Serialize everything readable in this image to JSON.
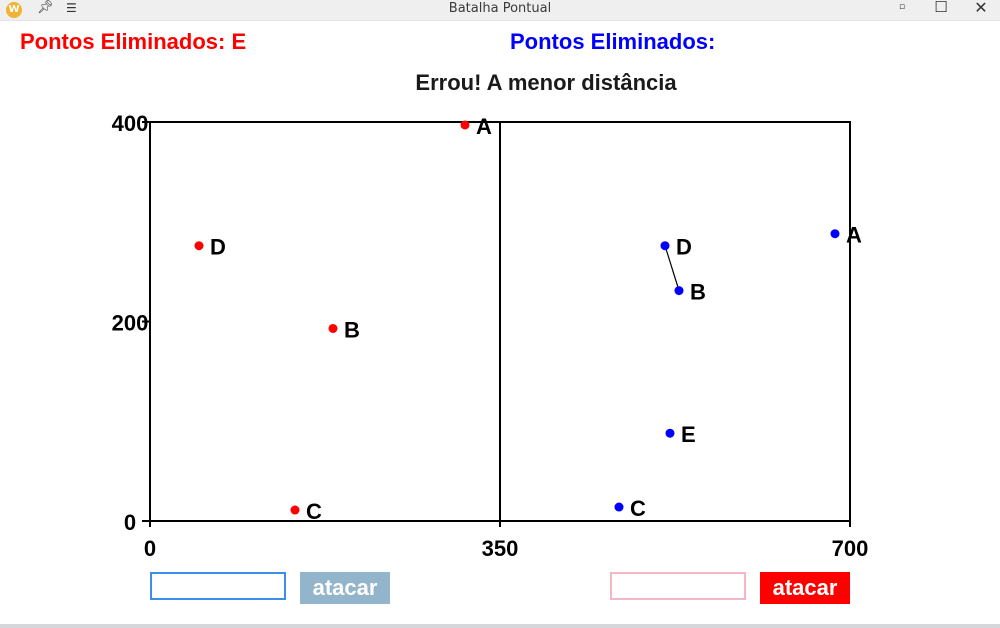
{
  "window": {
    "title": "Batalha Pontual",
    "app_icon_letter": "W",
    "pin_icon": "pin-icon",
    "menu_icon": "menu-icon",
    "minimize_glyph": "▫",
    "maximize_glyph": "☐",
    "close_glyph": "✕"
  },
  "scores": {
    "red": "Pontos Eliminados: E",
    "blue": "Pontos Eliminados:"
  },
  "message": "Errou! A menor distância",
  "controls": {
    "left_input_value": "",
    "left_attack_label": "atacar",
    "right_input_value": "",
    "right_attack_label": "atacar"
  },
  "colors": {
    "red": "#ff0000",
    "blue": "#0000ff"
  },
  "chart_data": {
    "type": "scatter",
    "xlim": [
      0,
      700
    ],
    "ylim": [
      0,
      400
    ],
    "x_ticks": [
      0,
      350,
      700
    ],
    "y_ticks": [
      0,
      200,
      400
    ],
    "x_tick_labels": [
      "0",
      "350",
      "700"
    ],
    "y_tick_labels": [
      "0",
      "200",
      "400"
    ],
    "divider_x": 350,
    "series": [
      {
        "color": "#ff0000",
        "points": [
          {
            "label": "A",
            "x": 315,
            "y": 397
          },
          {
            "label": "B",
            "x": 183,
            "y": 193
          },
          {
            "label": "C",
            "x": 145,
            "y": 11
          },
          {
            "label": "D",
            "x": 49,
            "y": 276
          }
        ]
      },
      {
        "color": "#0000ff",
        "points": [
          {
            "label": "A",
            "x": 685,
            "y": 288
          },
          {
            "label": "B",
            "x": 529,
            "y": 231
          },
          {
            "label": "C",
            "x": 469,
            "y": 14
          },
          {
            "label": "D",
            "x": 515,
            "y": 276
          },
          {
            "label": "E",
            "x": 520,
            "y": 88
          }
        ]
      }
    ],
    "segments": [
      {
        "from": {
          "x": 515,
          "y": 276
        },
        "to": {
          "x": 529,
          "y": 231
        }
      }
    ]
  }
}
